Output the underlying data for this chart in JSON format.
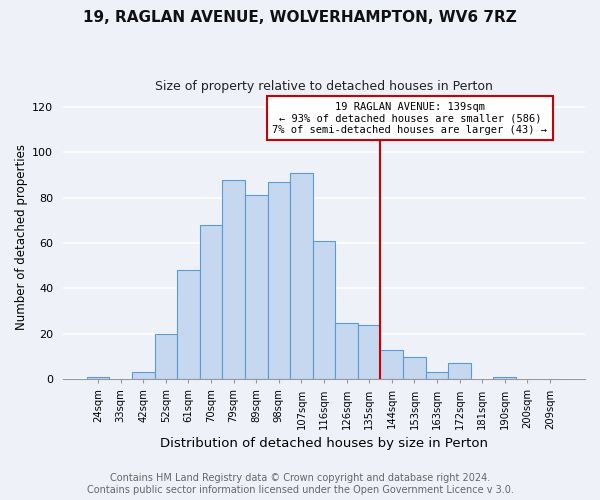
{
  "title": "19, RAGLAN AVENUE, WOLVERHAMPTON, WV6 7RZ",
  "subtitle": "Size of property relative to detached houses in Perton",
  "xlabel": "Distribution of detached houses by size in Perton",
  "ylabel": "Number of detached properties",
  "bar_labels": [
    "24sqm",
    "33sqm",
    "42sqm",
    "52sqm",
    "61sqm",
    "70sqm",
    "79sqm",
    "89sqm",
    "98sqm",
    "107sqm",
    "116sqm",
    "126sqm",
    "135sqm",
    "144sqm",
    "153sqm",
    "163sqm",
    "172sqm",
    "181sqm",
    "190sqm",
    "200sqm",
    "209sqm"
  ],
  "bar_values": [
    1,
    0,
    3,
    20,
    48,
    68,
    88,
    81,
    87,
    91,
    61,
    25,
    24,
    13,
    10,
    3,
    7,
    0,
    1,
    0,
    0
  ],
  "bar_color": "#c5d8f0",
  "bar_edge_color": "#5b9bd5",
  "ylim": [
    0,
    125
  ],
  "yticks": [
    0,
    20,
    40,
    60,
    80,
    100,
    120
  ],
  "vline_x_idx": 12.5,
  "vline_color": "#cc0000",
  "annotation_title": "19 RAGLAN AVENUE: 139sqm",
  "annotation_line1": "← 93% of detached houses are smaller (586)",
  "annotation_line2": "7% of semi-detached houses are larger (43) →",
  "annotation_box_color": "#ffffff",
  "annotation_box_edge": "#cc0000",
  "footer_line1": "Contains HM Land Registry data © Crown copyright and database right 2024.",
  "footer_line2": "Contains public sector information licensed under the Open Government Licence v 3.0.",
  "background_color": "#eef2f8",
  "grid_color": "#ffffff",
  "title_fontsize": 11,
  "subtitle_fontsize": 9,
  "xlabel_fontsize": 9.5,
  "ylabel_fontsize": 8.5,
  "footer_fontsize": 7
}
